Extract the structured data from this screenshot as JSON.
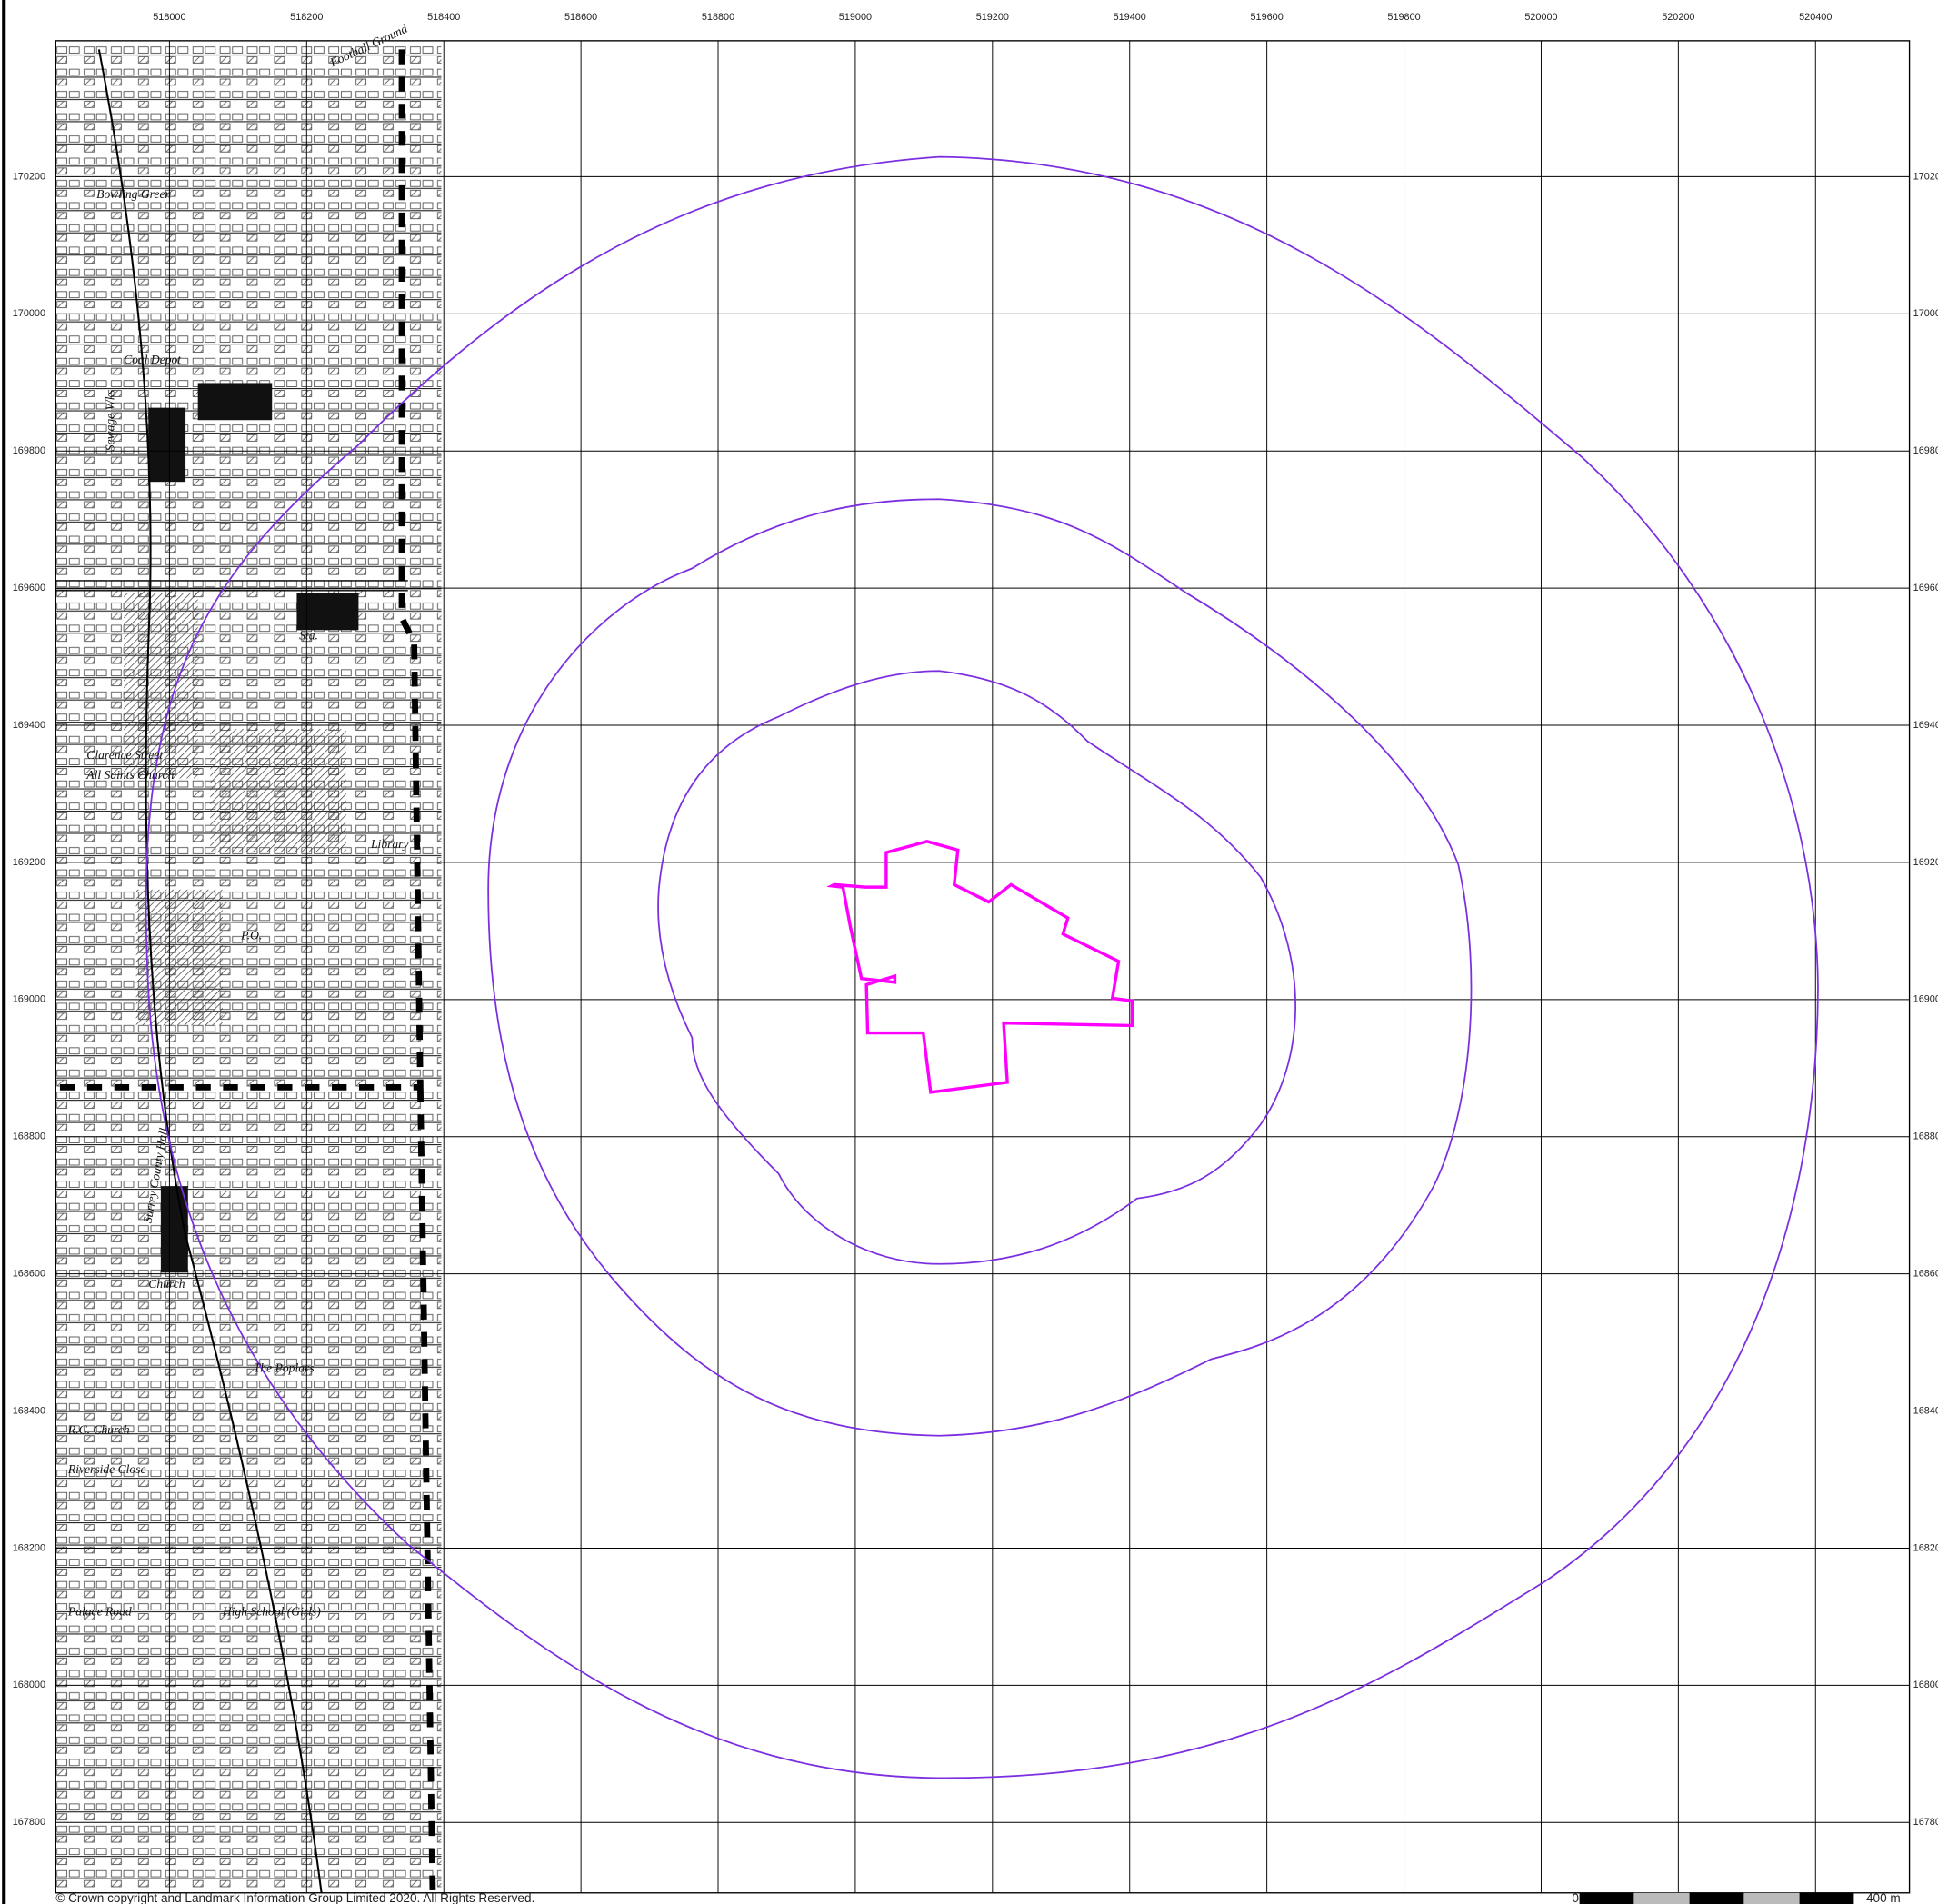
{
  "grid": {
    "eastings": [
      518000,
      518200,
      518400,
      518600,
      518800,
      519000,
      519200,
      519400,
      519600,
      519800,
      520000,
      520200,
      520400
    ],
    "northings": [
      170200,
      170000,
      169800,
      169600,
      169400,
      169200,
      169000,
      168800,
      168600,
      168400,
      168200,
      168000,
      167800
    ]
  },
  "map_labels": [
    "Football Ground",
    "Bowling Green",
    "Coal Depot",
    "Sewage Wks",
    "Sta.",
    "Clarence Street",
    "All Saints Church",
    "Library",
    "P.O.",
    "Surrey County Hall",
    "Church",
    "The Poplars",
    "R.C. Church",
    "High School (Girls)",
    "Riverside Close",
    "Palace Road"
  ],
  "copyright": "© Crown copyright and Landmark Information Group Limited 2020.  All Rights Reserved.",
  "scale_bar": {
    "start": "0",
    "end": "400 m"
  }
}
